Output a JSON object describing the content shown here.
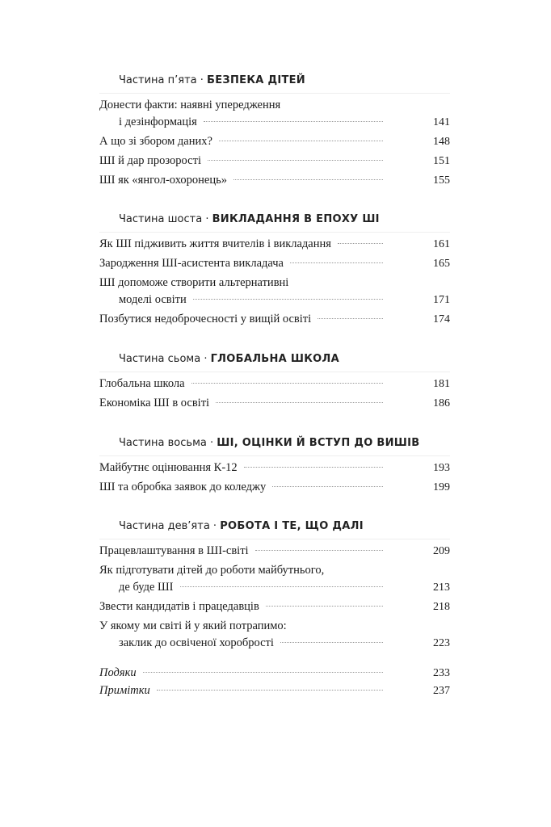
{
  "parts": [
    {
      "label": "Частина п’ята ·",
      "title": "БЕЗПЕКА ДІТЕЙ",
      "entries": [
        {
          "lines": [
            "Донести факти: наявні упередження",
            "і дезінформація"
          ],
          "page": "141"
        },
        {
          "lines": [
            "А що зі збором даних?"
          ],
          "page": "148"
        },
        {
          "lines": [
            "ШІ й дар прозорості"
          ],
          "page": "151"
        },
        {
          "lines": [
            "ШІ як «янгол-охоронець»"
          ],
          "page": "155"
        }
      ]
    },
    {
      "label": "Частина шоста ·",
      "title": "ВИКЛАДАННЯ В ЕПОХУ ШІ",
      "entries": [
        {
          "lines": [
            "Як ШІ підживить життя вчителів і викладання"
          ],
          "page": "161"
        },
        {
          "lines": [
            "Зародження ШІ-асистента викладача"
          ],
          "page": "165"
        },
        {
          "lines": [
            "ШІ допоможе створити альтернативні",
            "моделі освіти"
          ],
          "page": "171"
        },
        {
          "lines": [
            "Позбутися недоброчесності у вищій освіті"
          ],
          "page": "174"
        }
      ]
    },
    {
      "label": "Частина сьома ·",
      "title": "ГЛОБАЛЬНА ШКОЛА",
      "entries": [
        {
          "lines": [
            "Глобальна школа"
          ],
          "page": "181"
        },
        {
          "lines": [
            "Економіка ШІ в освіті"
          ],
          "page": "186"
        }
      ]
    },
    {
      "label": "Частина восьма ·",
      "title": "ШІ, ОЦІНКИ Й ВСТУП ДО ВИШІВ",
      "entries": [
        {
          "lines": [
            "Майбутнє оцінювання К-12"
          ],
          "page": "193"
        },
        {
          "lines": [
            "ШІ та обробка заявок до коледжу"
          ],
          "page": "199"
        }
      ]
    },
    {
      "label": "Частина дев’ята ·",
      "title": "РОБОТА І ТЕ, ЩО ДАЛІ",
      "entries": [
        {
          "lines": [
            "Працевлаштування в ШІ-світі"
          ],
          "page": "209"
        },
        {
          "lines": [
            "Як підготувати дітей до роботи майбутнього,",
            "де буде ШІ"
          ],
          "page": "213"
        },
        {
          "lines": [
            "Звести кандидатів і працедавців"
          ],
          "page": "218"
        },
        {
          "lines": [
            "У якому ми світі й у який потрапимо:",
            "заклик до освіченої хоробрості"
          ],
          "page": "223"
        }
      ]
    }
  ],
  "extras": [
    {
      "lines": [
        "Подяки"
      ],
      "page": "233"
    },
    {
      "lines": [
        "Примітки"
      ],
      "page": "237"
    }
  ]
}
